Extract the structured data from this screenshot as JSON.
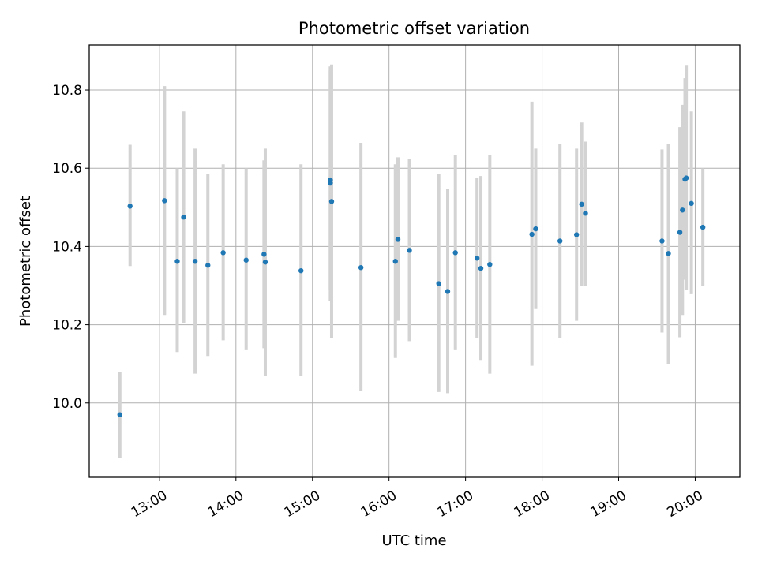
{
  "chart_data": {
    "type": "scatter",
    "title": "Photometric offset variation",
    "xlabel": "UTC time",
    "ylabel": "Photometric offset",
    "x_ticks": [
      "13:00",
      "14:00",
      "15:00",
      "16:00",
      "17:00",
      "18:00",
      "19:00",
      "20:00"
    ],
    "y_ticks": [
      "10.0",
      "10.2",
      "10.4",
      "10.6",
      "10.8"
    ],
    "xlim": [
      "12:05",
      "20:35"
    ],
    "ylim": [
      9.81,
      10.915
    ],
    "grid": true,
    "colors": {
      "marker": "#1f77b4",
      "errorbar": "#d3d3d3",
      "grid": "#b0b0b0"
    },
    "points": [
      {
        "x": "12:29",
        "y": 9.97,
        "low": 9.86,
        "high": 10.08
      },
      {
        "x": "12:37",
        "y": 10.503,
        "low": 10.35,
        "high": 10.66
      },
      {
        "x": "13:04",
        "y": 10.517,
        "low": 10.225,
        "high": 10.81
      },
      {
        "x": "13:14",
        "y": 10.362,
        "low": 10.13,
        "high": 10.6
      },
      {
        "x": "13:19",
        "y": 10.475,
        "low": 10.205,
        "high": 10.745
      },
      {
        "x": "13:28",
        "y": 10.362,
        "low": 10.075,
        "high": 10.65
      },
      {
        "x": "13:38",
        "y": 10.352,
        "low": 10.12,
        "high": 10.585
      },
      {
        "x": "13:50",
        "y": 10.384,
        "low": 10.16,
        "high": 10.61
      },
      {
        "x": "14:08",
        "y": 10.365,
        "low": 10.135,
        "high": 10.6
      },
      {
        "x": "14:22",
        "y": 10.38,
        "low": 10.14,
        "high": 10.62
      },
      {
        "x": "14:23",
        "y": 10.36,
        "low": 10.07,
        "high": 10.65
      },
      {
        "x": "14:51",
        "y": 10.338,
        "low": 10.07,
        "high": 10.61
      },
      {
        "x": "15:14",
        "y": 10.57,
        "low": 10.29,
        "high": 10.85
      },
      {
        "x": "15:14",
        "y": 10.562,
        "low": 10.26,
        "high": 10.86
      },
      {
        "x": "15:15",
        "y": 10.515,
        "low": 10.165,
        "high": 10.865
      },
      {
        "x": "15:38",
        "y": 10.346,
        "low": 10.03,
        "high": 10.665
      },
      {
        "x": "16:05",
        "y": 10.362,
        "low": 10.115,
        "high": 10.61
      },
      {
        "x": "16:07",
        "y": 10.418,
        "low": 10.21,
        "high": 10.628
      },
      {
        "x": "16:16",
        "y": 10.39,
        "low": 10.158,
        "high": 10.623
      },
      {
        "x": "16:39",
        "y": 10.305,
        "low": 10.028,
        "high": 10.585
      },
      {
        "x": "16:46",
        "y": 10.285,
        "low": 10.025,
        "high": 10.548
      },
      {
        "x": "16:52",
        "y": 10.384,
        "low": 10.135,
        "high": 10.633
      },
      {
        "x": "17:09",
        "y": 10.37,
        "low": 10.165,
        "high": 10.575
      },
      {
        "x": "17:12",
        "y": 10.344,
        "low": 10.11,
        "high": 10.58
      },
      {
        "x": "17:19",
        "y": 10.354,
        "low": 10.075,
        "high": 10.633
      },
      {
        "x": "17:52",
        "y": 10.431,
        "low": 10.095,
        "high": 10.77
      },
      {
        "x": "17:55",
        "y": 10.445,
        "low": 10.24,
        "high": 10.65
      },
      {
        "x": "18:14",
        "y": 10.414,
        "low": 10.165,
        "high": 10.662
      },
      {
        "x": "18:27",
        "y": 10.43,
        "low": 10.21,
        "high": 10.65
      },
      {
        "x": "18:31",
        "y": 10.508,
        "low": 10.3,
        "high": 10.717
      },
      {
        "x": "18:34",
        "y": 10.485,
        "low": 10.3,
        "high": 10.668
      },
      {
        "x": "19:34",
        "y": 10.414,
        "low": 10.18,
        "high": 10.648
      },
      {
        "x": "19:39",
        "y": 10.382,
        "low": 10.1,
        "high": 10.663
      },
      {
        "x": "19:48",
        "y": 10.436,
        "low": 10.168,
        "high": 10.705
      },
      {
        "x": "19:50",
        "y": 10.493,
        "low": 10.225,
        "high": 10.762
      },
      {
        "x": "19:52",
        "y": 10.572,
        "low": 10.315,
        "high": 10.83
      },
      {
        "x": "19:53",
        "y": 10.575,
        "low": 10.288,
        "high": 10.862
      },
      {
        "x": "19:57",
        "y": 10.51,
        "low": 10.278,
        "high": 10.745
      },
      {
        "x": "20:06",
        "y": 10.449,
        "low": 10.298,
        "high": 10.6
      }
    ]
  }
}
